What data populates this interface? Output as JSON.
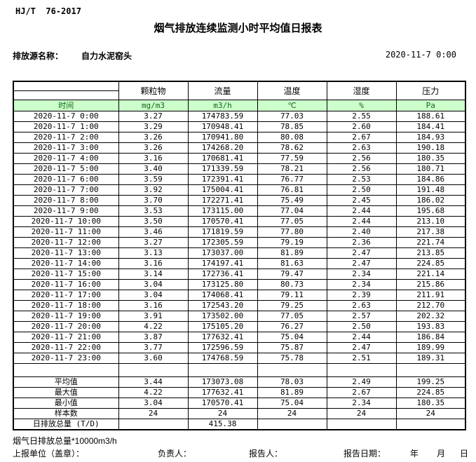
{
  "meta": {
    "standard_code": "HJ/T  76-2017",
    "title": "烟气排放连续监测小时平均值日报表",
    "source_label": "排放源名称：",
    "source_name": "自力水泥窑头",
    "datetime": "2020-11-7 0:00"
  },
  "colors": {
    "units_row_bg": "#ccffcc",
    "units_row_text": "#116611",
    "border": "#000000"
  },
  "table": {
    "time_header": "时间",
    "columns": [
      "颗粒物",
      "流量",
      "温度",
      "湿度",
      "压力"
    ],
    "units": [
      "mg/m3",
      "m3/h",
      "℃",
      "%",
      "Pa"
    ],
    "rows": [
      {
        "time": "2020-11-7 0:00",
        "values": [
          "3.27",
          "174783.59",
          "77.03",
          "2.55",
          "188.61"
        ]
      },
      {
        "time": "2020-11-7 1:00",
        "values": [
          "3.29",
          "170948.41",
          "78.85",
          "2.60",
          "184.41"
        ]
      },
      {
        "time": "2020-11-7 2:00",
        "values": [
          "3.26",
          "170941.80",
          "80.08",
          "2.67",
          "184.93"
        ]
      },
      {
        "time": "2020-11-7 3:00",
        "values": [
          "3.26",
          "174268.20",
          "78.62",
          "2.63",
          "190.18"
        ]
      },
      {
        "time": "2020-11-7 4:00",
        "values": [
          "3.16",
          "170681.41",
          "77.59",
          "2.56",
          "180.35"
        ]
      },
      {
        "time": "2020-11-7 5:00",
        "values": [
          "3.40",
          "171339.59",
          "78.21",
          "2.56",
          "180.71"
        ]
      },
      {
        "time": "2020-11-7 6:00",
        "values": [
          "3.59",
          "172391.41",
          "76.77",
          "2.53",
          "184.86"
        ]
      },
      {
        "time": "2020-11-7 7:00",
        "values": [
          "3.92",
          "175004.41",
          "76.81",
          "2.50",
          "191.48"
        ]
      },
      {
        "time": "2020-11-7 8:00",
        "values": [
          "3.70",
          "172271.41",
          "75.49",
          "2.45",
          "186.02"
        ]
      },
      {
        "time": "2020-11-7 9:00",
        "values": [
          "3.53",
          "173115.00",
          "77.04",
          "2.44",
          "195.68"
        ]
      },
      {
        "time": "2020-11-7 10:00",
        "values": [
          "3.50",
          "170570.41",
          "77.05",
          "2.44",
          "213.10"
        ]
      },
      {
        "time": "2020-11-7 11:00",
        "values": [
          "3.46",
          "171819.59",
          "77.80",
          "2.40",
          "217.38"
        ]
      },
      {
        "time": "2020-11-7 12:00",
        "values": [
          "3.27",
          "172305.59",
          "79.19",
          "2.36",
          "221.74"
        ]
      },
      {
        "time": "2020-11-7 13:00",
        "values": [
          "3.13",
          "173037.00",
          "81.89",
          "2.47",
          "213.85"
        ]
      },
      {
        "time": "2020-11-7 14:00",
        "values": [
          "3.16",
          "174197.41",
          "81.63",
          "2.47",
          "224.85"
        ]
      },
      {
        "time": "2020-11-7 15:00",
        "values": [
          "3.14",
          "172736.41",
          "79.47",
          "2.34",
          "221.14"
        ]
      },
      {
        "time": "2020-11-7 16:00",
        "values": [
          "3.04",
          "173125.80",
          "80.73",
          "2.34",
          "215.86"
        ]
      },
      {
        "time": "2020-11-7 17:00",
        "values": [
          "3.04",
          "174068.41",
          "79.11",
          "2.39",
          "211.91"
        ]
      },
      {
        "time": "2020-11-7 18:00",
        "values": [
          "3.16",
          "172543.20",
          "79.25",
          "2.63",
          "212.70"
        ]
      },
      {
        "time": "2020-11-7 19:00",
        "values": [
          "3.91",
          "173502.00",
          "77.05",
          "2.57",
          "202.32"
        ]
      },
      {
        "time": "2020-11-7 20:00",
        "values": [
          "4.22",
          "175105.20",
          "76.27",
          "2.50",
          "193.83"
        ]
      },
      {
        "time": "2020-11-7 21:00",
        "values": [
          "3.87",
          "177632.41",
          "75.04",
          "2.44",
          "186.84"
        ]
      },
      {
        "time": "2020-11-7 22:00",
        "values": [
          "3.77",
          "172596.59",
          "75.87",
          "2.47",
          "189.99"
        ]
      },
      {
        "time": "2020-11-7 23:00",
        "values": [
          "3.60",
          "174768.59",
          "75.78",
          "2.51",
          "189.31"
        ]
      }
    ],
    "summary": [
      {
        "label": "平均值",
        "values": [
          "3.44",
          "173073.08",
          "78.03",
          "2.49",
          "199.25"
        ]
      },
      {
        "label": "最大值",
        "values": [
          "4.22",
          "177632.41",
          "81.89",
          "2.67",
          "224.85"
        ]
      },
      {
        "label": "最小值",
        "values": [
          "3.04",
          "170570.41",
          "75.04",
          "2.34",
          "180.35"
        ]
      },
      {
        "label": "样本数",
        "values": [
          "24",
          "24",
          "24",
          "24",
          "24"
        ]
      },
      {
        "label": "日排放总量 (T/D)",
        "values": [
          "",
          "415.38",
          "",
          "",
          ""
        ]
      }
    ]
  },
  "footer": {
    "note": "烟气日排放总量*10000m3/h",
    "report_unit_label": "上报单位（盖章）：",
    "responsible_label": "负责人：",
    "reporter_label": "报告人：",
    "report_date_label": "报告日期：",
    "year_label": "年",
    "month_label": "月",
    "day_label": "日"
  }
}
